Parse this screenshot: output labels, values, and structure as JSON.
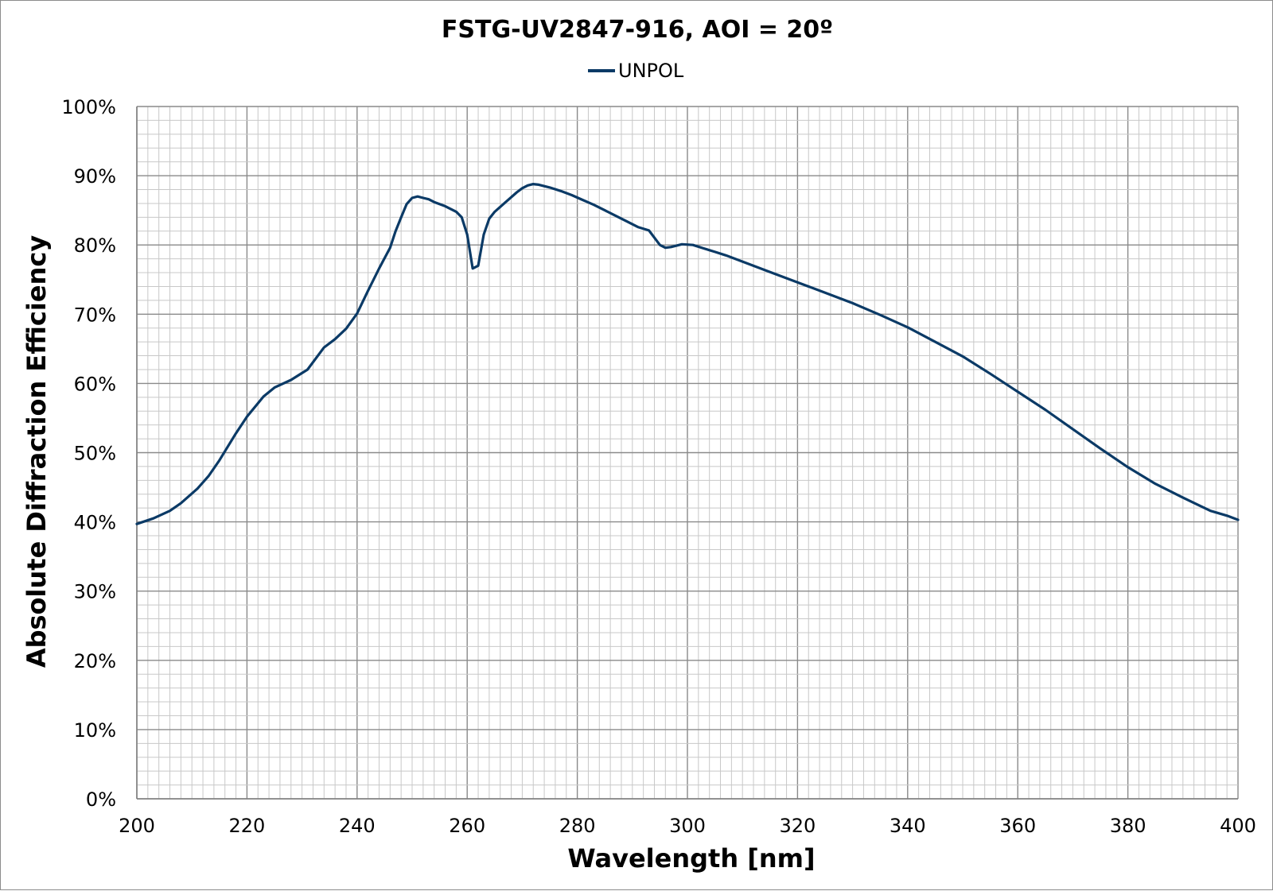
{
  "chart_data": {
    "type": "line",
    "title": "FSTG-UV2847-916, AOI = 20º",
    "xlabel": "Wavelength [nm]",
    "ylabel": "Absolute Diffraction Efficiency",
    "xlim": [
      200,
      400
    ],
    "ylim": [
      0,
      100
    ],
    "x_ticks": [
      "200",
      "220",
      "240",
      "260",
      "280",
      "300",
      "320",
      "340",
      "360",
      "380",
      "400"
    ],
    "y_ticks": [
      "0%",
      "10%",
      "20%",
      "30%",
      "40%",
      "50%",
      "60%",
      "70%",
      "80%",
      "90%",
      "100%"
    ],
    "x_tick_values": [
      200,
      220,
      240,
      260,
      280,
      300,
      320,
      340,
      360,
      380,
      400
    ],
    "y_tick_values": [
      0,
      10,
      20,
      30,
      40,
      50,
      60,
      70,
      80,
      90,
      100
    ],
    "grid": true,
    "legend_position": "top-center",
    "series": [
      {
        "name": "UNPOL",
        "color": "#0b3a66",
        "x": [
          200,
          203,
          206,
          208,
          211,
          213,
          215,
          218,
          220,
          223,
          225,
          228,
          231,
          234,
          236,
          238,
          240,
          242,
          244,
          246,
          247,
          248,
          249,
          250,
          251,
          252,
          253,
          254,
          256,
          258,
          259,
          260,
          261,
          262,
          263,
          264,
          265,
          267,
          269,
          270,
          271,
          272,
          273,
          275,
          277,
          279,
          281,
          283,
          285,
          287,
          289,
          291,
          293,
          295,
          296,
          297,
          299,
          301,
          303,
          305,
          307,
          310,
          315,
          320,
          325,
          330,
          335,
          340,
          345,
          350,
          355,
          360,
          365,
          370,
          375,
          380,
          385,
          390,
          395,
          398,
          400
        ],
        "y": [
          39.7,
          40.5,
          41.6,
          42.7,
          44.8,
          46.6,
          48.9,
          52.8,
          55.2,
          58.1,
          59.4,
          60.5,
          62.0,
          65.2,
          66.4,
          67.9,
          70.1,
          73.4,
          76.6,
          79.6,
          82.0,
          84.0,
          85.9,
          86.8,
          87.0,
          86.8,
          86.6,
          86.2,
          85.6,
          84.8,
          84.0,
          81.5,
          76.6,
          77.0,
          81.5,
          83.8,
          84.8,
          86.2,
          87.6,
          88.2,
          88.6,
          88.8,
          88.7,
          88.3,
          87.8,
          87.2,
          86.5,
          85.8,
          85.0,
          84.2,
          83.4,
          82.6,
          82.1,
          80.0,
          79.6,
          79.7,
          80.1,
          80.0,
          79.5,
          79.0,
          78.5,
          77.6,
          76.1,
          74.6,
          73.1,
          71.6,
          69.9,
          68.1,
          66.0,
          63.9,
          61.4,
          58.8,
          56.2,
          53.4,
          50.6,
          47.9,
          45.5,
          43.5,
          41.6,
          40.9,
          40.3
        ]
      }
    ]
  }
}
